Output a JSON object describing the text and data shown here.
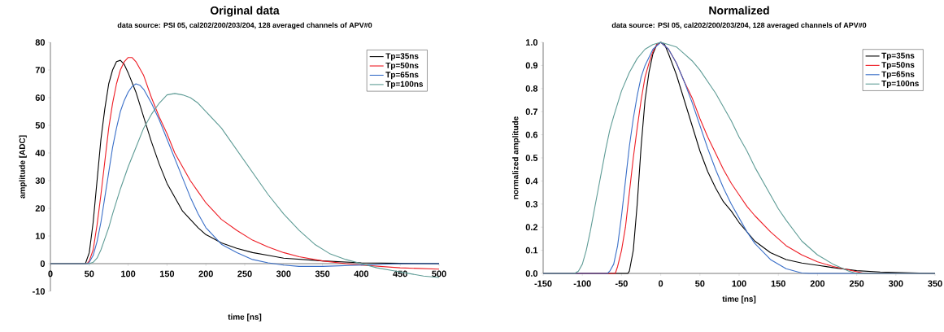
{
  "chart_data": [
    {
      "type": "line",
      "title": "Original data",
      "subtitle": "data source: PSI 05, cal202/200/203/204, 128 averaged channels of APV#0",
      "xlabel": "time [ns]",
      "ylabel": "amplitude [ADC]",
      "xlim": [
        0,
        500
      ],
      "ylim": [
        -10,
        80
      ],
      "xticks": [
        0,
        50,
        100,
        150,
        200,
        250,
        300,
        350,
        400,
        450,
        500
      ],
      "yticks": [
        -10,
        0,
        10,
        20,
        30,
        40,
        50,
        60,
        70,
        80
      ],
      "legend": "top right",
      "series": [
        {
          "name": "Tp=35ns",
          "color": "#000000",
          "x": [
            0,
            45,
            50,
            55,
            60,
            65,
            70,
            75,
            80,
            85,
            90,
            95,
            100,
            110,
            120,
            130,
            140,
            150,
            160,
            170,
            180,
            190,
            200,
            220,
            240,
            260,
            280,
            300,
            350,
            400,
            450,
            500
          ],
          "values": [
            0,
            0,
            4,
            15,
            30,
            45,
            56,
            65,
            70,
            73,
            73.5,
            72,
            69,
            62,
            53,
            44,
            36,
            29,
            24,
            19,
            16,
            13,
            10.5,
            7.5,
            5.5,
            4,
            3,
            2,
            1,
            0.3,
            0.1,
            0
          ]
        },
        {
          "name": "Tp=50ns",
          "color": "#ee1c24",
          "x": [
            0,
            47,
            50,
            55,
            60,
            65,
            70,
            75,
            80,
            85,
            90,
            95,
            100,
            105,
            110,
            120,
            130,
            140,
            150,
            160,
            170,
            180,
            190,
            200,
            220,
            240,
            260,
            280,
            300,
            320,
            350,
            380,
            400,
            450,
            500
          ],
          "values": [
            0,
            0,
            1,
            5,
            14,
            25,
            37,
            49,
            58,
            65,
            70,
            73,
            74.5,
            74.5,
            73,
            68,
            60,
            53,
            47,
            40,
            35,
            30,
            26,
            22,
            16,
            12,
            8.5,
            6,
            4,
            2.5,
            1,
            0,
            -0.5,
            -1.5,
            -2
          ]
        },
        {
          "name": "Tp=65ns",
          "color": "#3a6fc8",
          "x": [
            0,
            48,
            50,
            55,
            60,
            65,
            70,
            75,
            80,
            85,
            90,
            95,
            100,
            105,
            110,
            115,
            120,
            130,
            140,
            150,
            160,
            170,
            180,
            190,
            200,
            220,
            240,
            260,
            280,
            300,
            320,
            350,
            400,
            450,
            500
          ],
          "values": [
            0,
            0,
            0.5,
            3,
            8,
            15,
            24,
            33,
            42,
            49,
            55,
            59,
            62,
            64,
            65,
            64.5,
            63,
            58,
            52,
            45,
            38,
            31,
            24,
            18,
            13,
            7,
            4,
            1.5,
            0.3,
            -0.5,
            -1,
            -1,
            -0.5,
            0,
            0
          ]
        },
        {
          "name": "Tp=100ns",
          "color": "#5f9c96",
          "x": [
            0,
            50,
            55,
            60,
            65,
            70,
            75,
            80,
            90,
            100,
            110,
            120,
            130,
            140,
            150,
            160,
            170,
            180,
            190,
            200,
            220,
            240,
            260,
            280,
            300,
            320,
            340,
            360,
            380,
            400,
            420,
            440,
            460,
            480,
            500
          ],
          "values": [
            0,
            0,
            0.5,
            2,
            5,
            9,
            13,
            18,
            27,
            35,
            42,
            49,
            54,
            58,
            61,
            61.5,
            61,
            60,
            58,
            55,
            49,
            41,
            33,
            25,
            18,
            12,
            7,
            3.5,
            1.5,
            0,
            -1.5,
            -2.5,
            -3.5,
            -4.5,
            -5
          ]
        }
      ]
    },
    {
      "type": "line",
      "title": "Normalized",
      "subtitle": "data source: PSI 05, cal202/200/203/204, 128 averaged channels of APV#0",
      "xlabel": "time [ns]",
      "ylabel": "normalized amplitude",
      "xlim": [
        -150,
        350
      ],
      "ylim": [
        0,
        1
      ],
      "xticks": [
        -150,
        -100,
        -50,
        0,
        50,
        100,
        150,
        200,
        250,
        300,
        350
      ],
      "yticks": [
        {
          "value": 0,
          "label": "0.0"
        },
        0.1,
        0.2,
        0.3,
        0.4,
        0.5,
        0.6,
        0.7,
        0.8,
        0.9,
        {
          "value": 1,
          "label": "1.0"
        }
      ],
      "legend": "top right",
      "series": [
        {
          "name": "Tp=35ns",
          "color": "#000000",
          "x": [
            -150,
            -42,
            -40,
            -35,
            -30,
            -25,
            -20,
            -15,
            -10,
            -5,
            0,
            5,
            10,
            20,
            30,
            40,
            50,
            60,
            70,
            80,
            90,
            100,
            110,
            120,
            140,
            160,
            180,
            200,
            220,
            250,
            280,
            310,
            350
          ],
          "values": [
            0,
            0,
            0.01,
            0.1,
            0.3,
            0.55,
            0.75,
            0.87,
            0.95,
            0.99,
            1,
            0.99,
            0.95,
            0.86,
            0.75,
            0.64,
            0.53,
            0.44,
            0.37,
            0.31,
            0.27,
            0.22,
            0.18,
            0.14,
            0.09,
            0.06,
            0.045,
            0.035,
            0.025,
            0.012,
            0.006,
            0.003,
            0
          ]
        },
        {
          "name": "Tp=50ns",
          "color": "#ee1c24",
          "x": [
            -150,
            -58,
            -55,
            -50,
            -45,
            -40,
            -35,
            -30,
            -25,
            -20,
            -15,
            -10,
            -5,
            0,
            10,
            20,
            30,
            40,
            50,
            60,
            70,
            80,
            90,
            100,
            110,
            120,
            140,
            160,
            180,
            200,
            220,
            240,
            260,
            350
          ],
          "values": [
            0,
            0,
            0.03,
            0.1,
            0.2,
            0.35,
            0.5,
            0.63,
            0.75,
            0.85,
            0.91,
            0.96,
            0.99,
            1,
            0.97,
            0.91,
            0.83,
            0.76,
            0.67,
            0.59,
            0.52,
            0.45,
            0.39,
            0.34,
            0.29,
            0.25,
            0.18,
            0.12,
            0.08,
            0.05,
            0.03,
            0.015,
            0,
            0
          ]
        },
        {
          "name": "Tp=65ns",
          "color": "#3a6fc8",
          "x": [
            -150,
            -68,
            -65,
            -60,
            -55,
            -50,
            -45,
            -40,
            -35,
            -30,
            -25,
            -20,
            -10,
            0,
            10,
            20,
            30,
            40,
            50,
            60,
            70,
            80,
            90,
            100,
            110,
            120,
            140,
            160,
            180,
            190,
            350
          ],
          "values": [
            0,
            0,
            0.01,
            0.04,
            0.12,
            0.25,
            0.4,
            0.55,
            0.67,
            0.77,
            0.85,
            0.9,
            0.97,
            1,
            0.97,
            0.91,
            0.83,
            0.74,
            0.64,
            0.54,
            0.45,
            0.37,
            0.3,
            0.24,
            0.18,
            0.13,
            0.06,
            0.02,
            0.002,
            0,
            0
          ]
        },
        {
          "name": "Tp=100ns",
          "color": "#5f9c96",
          "x": [
            -150,
            -110,
            -105,
            -100,
            -95,
            -90,
            -85,
            -80,
            -75,
            -70,
            -65,
            -60,
            -50,
            -40,
            -30,
            -20,
            -10,
            0,
            10,
            20,
            30,
            40,
            50,
            60,
            70,
            80,
            90,
            100,
            110,
            120,
            130,
            140,
            150,
            160,
            180,
            200,
            220,
            240,
            250,
            350
          ],
          "values": [
            0,
            0,
            0.01,
            0.04,
            0.1,
            0.18,
            0.27,
            0.36,
            0.45,
            0.54,
            0.62,
            0.68,
            0.79,
            0.87,
            0.93,
            0.97,
            0.99,
            1,
            0.99,
            0.98,
            0.95,
            0.92,
            0.88,
            0.83,
            0.78,
            0.72,
            0.66,
            0.59,
            0.53,
            0.46,
            0.4,
            0.34,
            0.28,
            0.23,
            0.14,
            0.08,
            0.04,
            0.01,
            0,
            0
          ]
        }
      ]
    }
  ]
}
